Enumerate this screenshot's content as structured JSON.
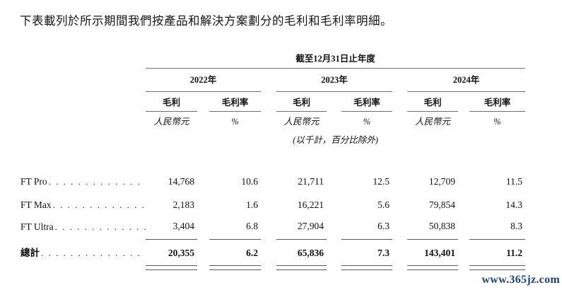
{
  "page": {
    "intro": "下表載列於所示期間我們按產品和解決方案劃分的毛利和毛利率明細。",
    "watermark": "www.365jz.com"
  },
  "table": {
    "period_header": "截至12月31日止年度",
    "years": [
      "2022年",
      "2023年",
      "2024年"
    ],
    "col_headers": {
      "gross_profit": "毛利",
      "gross_margin": "毛利率"
    },
    "units": {
      "currency": "人民幣元",
      "percent": "%"
    },
    "units_note": "(以千計，百分比除外)",
    "rows": [
      {
        "label": "FT Pro",
        "values": [
          "14,768",
          "10.6",
          "21,711",
          "12.5",
          "12,709",
          "11.5"
        ]
      },
      {
        "label": "FT Max",
        "values": [
          "2,183",
          "1.6",
          "16,221",
          "5.6",
          "79,854",
          "14.3"
        ]
      },
      {
        "label": "FT Ultra",
        "values": [
          "3,404",
          "6.8",
          "27,904",
          "6.3",
          "50,838",
          "8.3"
        ]
      }
    ],
    "total": {
      "label": "總計",
      "values": [
        "20,355",
        "6.2",
        "65,836",
        "7.3",
        "143,401",
        "11.2"
      ]
    }
  },
  "colors": {
    "watermark_blue": "#17457f"
  }
}
